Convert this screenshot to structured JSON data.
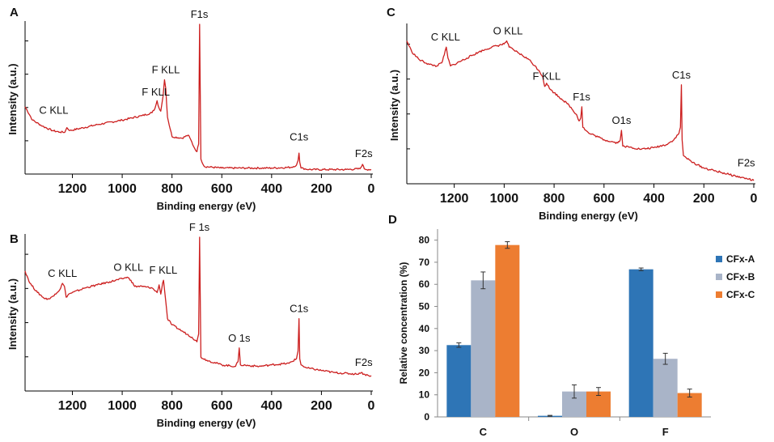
{
  "figure": {
    "panels": [
      "A",
      "B",
      "C",
      "D"
    ]
  },
  "chart_data": [
    {
      "panel": "A",
      "type": "line",
      "xlabel": "Binding energy (eV)",
      "ylabel": "Intensity (a.u.)",
      "xlim": [
        1390,
        0
      ],
      "ylim": [
        0,
        100
      ],
      "color": "#cc1f1f",
      "xticks": [
        1200,
        1000,
        800,
        600,
        400,
        200,
        0
      ],
      "annotations": [
        {
          "label": "F1s",
          "x": 690,
          "y": 100
        },
        {
          "label": "F KLL",
          "x": 825,
          "y": 63
        },
        {
          "label": "F KLL",
          "x": 865,
          "y": 48
        },
        {
          "label": "C KLL",
          "x": 1275,
          "y": 36
        },
        {
          "label": "C1s",
          "x": 290,
          "y": 18
        },
        {
          "label": "F2s",
          "x": 30,
          "y": 7
        }
      ],
      "points": [
        [
          1390,
          45
        ],
        [
          1360,
          36
        ],
        [
          1320,
          32
        ],
        [
          1280,
          29
        ],
        [
          1250,
          28
        ],
        [
          1230,
          28
        ],
        [
          1222,
          31
        ],
        [
          1210,
          29
        ],
        [
          1100,
          33
        ],
        [
          1000,
          36
        ],
        [
          920,
          39
        ],
        [
          880,
          41
        ],
        [
          868,
          44
        ],
        [
          860,
          49
        ],
        [
          852,
          44
        ],
        [
          845,
          42
        ],
        [
          836,
          52
        ],
        [
          830,
          63
        ],
        [
          825,
          57
        ],
        [
          818,
          38
        ],
        [
          800,
          25
        ],
        [
          760,
          24
        ],
        [
          735,
          26
        ],
        [
          725,
          23
        ],
        [
          712,
          18
        ],
        [
          700,
          15
        ],
        [
          693,
          20
        ],
        [
          689,
          100
        ],
        [
          684,
          10
        ],
        [
          670,
          5
        ],
        [
          600,
          4
        ],
        [
          500,
          4
        ],
        [
          400,
          4
        ],
        [
          320,
          4.5
        ],
        [
          300,
          6
        ],
        [
          294,
          9
        ],
        [
          290,
          14
        ],
        [
          287,
          8
        ],
        [
          282,
          4
        ],
        [
          250,
          3
        ],
        [
          100,
          3
        ],
        [
          45,
          3.5
        ],
        [
          35,
          6.5
        ],
        [
          28,
          3.5
        ],
        [
          10,
          3
        ],
        [
          0,
          3
        ]
      ]
    },
    {
      "panel": "B",
      "type": "line",
      "xlabel": "Binding energy (eV)",
      "ylabel": "Intensity (a.u.)",
      "xlim": [
        1390,
        0
      ],
      "ylim": [
        0,
        100
      ],
      "color": "#cc1f1f",
      "xticks": [
        1200,
        1000,
        800,
        600,
        400,
        200,
        0
      ],
      "annotations": [
        {
          "label": "C KLL",
          "x": 1240,
          "y": 70
        },
        {
          "label": "O KLL",
          "x": 975,
          "y": 74
        },
        {
          "label": "F KLL",
          "x": 835,
          "y": 72
        },
        {
          "label": "F 1s",
          "x": 690,
          "y": 100
        },
        {
          "label": "O 1s",
          "x": 530,
          "y": 28
        },
        {
          "label": "C1s",
          "x": 290,
          "y": 47
        },
        {
          "label": "F2s",
          "x": 30,
          "y": 12
        }
      ],
      "points": [
        [
          1390,
          78
        ],
        [
          1370,
          70
        ],
        [
          1340,
          64
        ],
        [
          1310,
          60
        ],
        [
          1290,
          60
        ],
        [
          1270,
          63
        ],
        [
          1250,
          66
        ],
        [
          1240,
          70
        ],
        [
          1232,
          68
        ],
        [
          1225,
          61
        ],
        [
          1215,
          63
        ],
        [
          1150,
          67
        ],
        [
          1100,
          69
        ],
        [
          1050,
          71
        ],
        [
          1000,
          73
        ],
        [
          980,
          74
        ],
        [
          965,
          72
        ],
        [
          950,
          68
        ],
        [
          920,
          68
        ],
        [
          880,
          67
        ],
        [
          860,
          64
        ],
        [
          852,
          69
        ],
        [
          845,
          63
        ],
        [
          838,
          70
        ],
        [
          834,
          72
        ],
        [
          828,
          63
        ],
        [
          818,
          47
        ],
        [
          800,
          43
        ],
        [
          760,
          39
        ],
        [
          720,
          35
        ],
        [
          700,
          32
        ],
        [
          693,
          37
        ],
        [
          689,
          100
        ],
        [
          684,
          22
        ],
        [
          660,
          20
        ],
        [
          600,
          17
        ],
        [
          545,
          16
        ],
        [
          535,
          19
        ],
        [
          530,
          28
        ],
        [
          525,
          17
        ],
        [
          450,
          16
        ],
        [
          400,
          17
        ],
        [
          330,
          18
        ],
        [
          300,
          21
        ],
        [
          294,
          26
        ],
        [
          290,
          47
        ],
        [
          287,
          21
        ],
        [
          282,
          17
        ],
        [
          260,
          15
        ],
        [
          150,
          12
        ],
        [
          60,
          11
        ],
        [
          40,
          12
        ],
        [
          30,
          11
        ],
        [
          10,
          10
        ],
        [
          0,
          10
        ]
      ]
    },
    {
      "panel": "C",
      "type": "line",
      "xlabel": "Binding energy (eV)",
      "ylabel": "Intensity (a.u.)",
      "xlim": [
        1390,
        0
      ],
      "ylim": [
        0,
        100
      ],
      "color": "#cc1f1f",
      "xticks": [
        1200,
        1000,
        800,
        600,
        400,
        200,
        0
      ],
      "annotations": [
        {
          "label": "C KLL",
          "x": 1235,
          "y": 87
        },
        {
          "label": "O KLL",
          "x": 985,
          "y": 91
        },
        {
          "label": "F KLL",
          "x": 830,
          "y": 62
        },
        {
          "label": "F1s",
          "x": 690,
          "y": 49
        },
        {
          "label": "O1s",
          "x": 530,
          "y": 34
        },
        {
          "label": "C1s",
          "x": 290,
          "y": 63
        },
        {
          "label": "F2s",
          "x": 30,
          "y": 7
        }
      ],
      "points": [
        [
          1390,
          91
        ],
        [
          1370,
          84
        ],
        [
          1340,
          79
        ],
        [
          1300,
          76
        ],
        [
          1270,
          75
        ],
        [
          1250,
          77
        ],
        [
          1240,
          82
        ],
        [
          1232,
          87
        ],
        [
          1225,
          80
        ],
        [
          1215,
          75
        ],
        [
          1200,
          76
        ],
        [
          1150,
          80
        ],
        [
          1100,
          84
        ],
        [
          1050,
          87
        ],
        [
          1000,
          89
        ],
        [
          990,
          91
        ],
        [
          980,
          87
        ],
        [
          960,
          85
        ],
        [
          940,
          83
        ],
        [
          900,
          79
        ],
        [
          860,
          72
        ],
        [
          845,
          68
        ],
        [
          838,
          62
        ],
        [
          830,
          64
        ],
        [
          815,
          60
        ],
        [
          800,
          58
        ],
        [
          770,
          54
        ],
        [
          740,
          50
        ],
        [
          710,
          44
        ],
        [
          700,
          40
        ],
        [
          693,
          42
        ],
        [
          689,
          49
        ],
        [
          685,
          36
        ],
        [
          660,
          32
        ],
        [
          640,
          31
        ],
        [
          600,
          28
        ],
        [
          545,
          26
        ],
        [
          535,
          28
        ],
        [
          530,
          34
        ],
        [
          525,
          24
        ],
        [
          450,
          22
        ],
        [
          400,
          23
        ],
        [
          350,
          25
        ],
        [
          320,
          28
        ],
        [
          300,
          32
        ],
        [
          294,
          36
        ],
        [
          290,
          63
        ],
        [
          287,
          28
        ],
        [
          282,
          18
        ],
        [
          250,
          14
        ],
        [
          200,
          10
        ],
        [
          150,
          8
        ],
        [
          100,
          6
        ],
        [
          50,
          4
        ],
        [
          20,
          3
        ],
        [
          0,
          2
        ]
      ]
    },
    {
      "panel": "D",
      "type": "bar",
      "ylabel": "Relative concentration (%)",
      "categories": [
        "C",
        "O",
        "F"
      ],
      "ylim": [
        0,
        85
      ],
      "yticks": [
        0,
        10,
        20,
        30,
        40,
        50,
        60,
        70,
        80
      ],
      "legend_position": "right",
      "series": [
        {
          "name": "CFx-A",
          "color": "#2e75b6",
          "values": [
            32.5,
            0.5,
            66.8
          ],
          "errors": [
            1.0,
            0.2,
            0.6
          ]
        },
        {
          "name": "CFx-B",
          "color": "#a9b4c8",
          "values": [
            61.8,
            11.5,
            26.3
          ],
          "errors": [
            3.8,
            3.0,
            2.5
          ]
        },
        {
          "name": "CFx-C",
          "color": "#ed7d31",
          "values": [
            77.8,
            11.5,
            10.8
          ],
          "errors": [
            1.5,
            1.8,
            1.8
          ]
        }
      ]
    }
  ]
}
